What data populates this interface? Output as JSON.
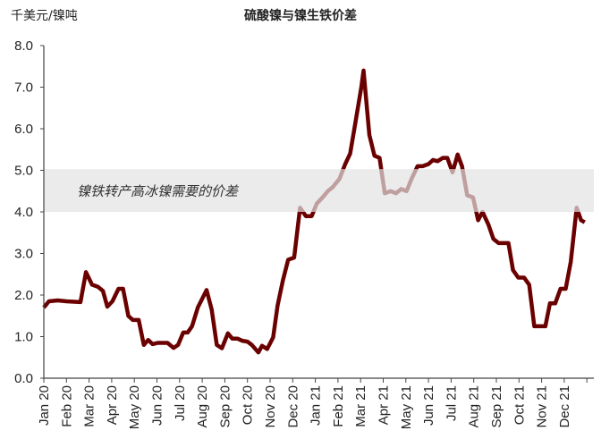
{
  "chart_data": {
    "type": "line",
    "title": "硫酸镍与镍生铁价差",
    "ylabel": "千美元/镍吨",
    "xlabel": "",
    "ylim": [
      0,
      8
    ],
    "yticks": [
      "0.0",
      "1.0",
      "2.0",
      "3.0",
      "4.0",
      "5.0",
      "6.0",
      "7.0",
      "8.0"
    ],
    "xticks": [
      "Jan 20",
      "Feb 20",
      "Mar 20",
      "Apr 20",
      "May 20",
      "Jun 20",
      "Jul 20",
      "Aug 20",
      "Sep 20",
      "Oct 20",
      "Nov 20",
      "Dec 20",
      "Jan 21",
      "Feb 21",
      "Mar 21",
      "Apr 21",
      "May 21",
      "Jun 21",
      "Jul 21",
      "Aug 21",
      "Sep 21",
      "Oct 21",
      "Nov 21",
      "Dec 21"
    ],
    "xlim": [
      "2020-01-01",
      "2022-01-05"
    ],
    "grid": false,
    "band": {
      "from": 4.0,
      "to": 5.03,
      "label": "镍铁转产高冰镍需要的价差",
      "color": "#e3e3e3"
    },
    "line_color": "#6b0000",
    "series": [
      {
        "x": [
          "2020-01-01",
          "2020-01-08",
          "2020-01-20",
          "2020-02-01",
          "2020-02-19",
          "2020-02-26",
          "2020-03-05",
          "2020-03-13",
          "2020-03-20",
          "2020-03-26",
          "2020-04-02",
          "2020-04-10",
          "2020-04-16",
          "2020-04-23",
          "2020-04-29",
          "2020-05-07",
          "2020-05-14",
          "2020-05-20",
          "2020-05-26",
          "2020-06-02",
          "2020-06-15",
          "2020-06-23",
          "2020-06-29",
          "2020-07-06",
          "2020-07-12",
          "2020-07-18",
          "2020-07-26",
          "2020-08-07",
          "2020-08-14",
          "2020-08-21",
          "2020-08-28",
          "2020-09-05",
          "2020-09-11",
          "2020-09-18",
          "2020-09-24",
          "2020-10-01",
          "2020-10-07",
          "2020-10-16",
          "2020-10-21",
          "2020-10-28",
          "2020-11-05",
          "2020-11-11",
          "2020-11-18",
          "2020-11-25",
          "2020-12-03",
          "2020-12-11",
          "2020-12-19",
          "2020-12-27",
          "2021-01-03",
          "2021-01-11",
          "2021-01-18",
          "2021-01-25",
          "2021-02-03",
          "2021-02-10",
          "2021-02-16",
          "2021-02-23",
          "2021-03-02",
          "2021-03-05",
          "2021-03-13",
          "2021-03-20",
          "2021-03-27",
          "2021-04-03",
          "2021-04-11",
          "2021-04-18",
          "2021-04-25",
          "2021-05-02",
          "2021-05-09",
          "2021-05-17",
          "2021-05-24",
          "2021-06-01",
          "2021-06-07",
          "2021-06-13",
          "2021-06-20",
          "2021-06-26",
          "2021-07-03",
          "2021-07-10",
          "2021-07-16",
          "2021-07-23",
          "2021-07-31",
          "2021-08-07",
          "2021-08-13",
          "2021-08-21",
          "2021-08-28",
          "2021-09-04",
          "2021-09-17",
          "2021-09-23",
          "2021-09-30",
          "2021-10-08",
          "2021-10-15",
          "2021-10-22",
          "2021-11-06",
          "2021-11-12",
          "2021-11-19",
          "2021-11-26",
          "2021-12-03",
          "2021-12-10",
          "2021-12-18",
          "2021-12-24",
          "2021-12-29"
        ],
        "y": [
          1.7,
          1.85,
          1.87,
          1.85,
          1.83,
          2.55,
          2.25,
          2.2,
          2.1,
          1.72,
          1.85,
          2.15,
          2.15,
          1.5,
          1.4,
          1.4,
          0.8,
          0.92,
          0.82,
          0.85,
          0.85,
          0.73,
          0.8,
          1.1,
          1.1,
          1.25,
          1.7,
          2.12,
          1.65,
          0.8,
          0.72,
          1.08,
          0.95,
          0.95,
          0.9,
          0.88,
          0.8,
          0.62,
          0.78,
          0.7,
          0.98,
          1.75,
          2.35,
          2.85,
          2.9,
          4.1,
          3.9,
          3.9,
          4.2,
          4.35,
          4.5,
          4.6,
          4.8,
          5.15,
          5.4,
          6.2,
          7.0,
          7.4,
          5.85,
          5.35,
          5.3,
          4.45,
          4.5,
          4.45,
          4.55,
          4.5,
          4.8,
          5.1,
          5.1,
          5.15,
          5.25,
          5.22,
          5.3,
          5.3,
          4.95,
          5.38,
          5.1,
          4.4,
          4.35,
          3.8,
          4.0,
          3.7,
          3.35,
          3.25,
          3.25,
          2.6,
          2.42,
          2.42,
          2.25,
          1.25,
          1.25,
          1.8,
          1.8,
          2.15,
          2.15,
          2.8,
          4.1,
          3.8,
          3.75
        ]
      }
    ]
  }
}
